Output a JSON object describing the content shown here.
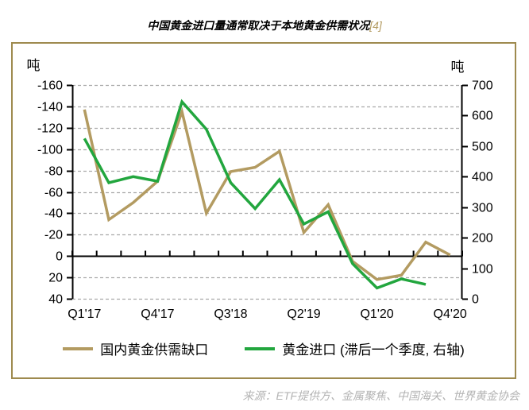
{
  "title": {
    "text": "中国黄金进口量通常取决于本地黄金供需状况",
    "ref": "[4]"
  },
  "source": {
    "text": "来源：ETF提供方、金属聚焦、中国海关、世界黄金协会"
  },
  "colors": {
    "box_border": "#9e8a4e",
    "grid": "#a9a9a9",
    "axis": "#000000",
    "title_ref": "#b39b61",
    "source_text": "#b3b3b3"
  },
  "chart_data": {
    "type": "line",
    "categories": [
      "Q1'17",
      "Q2'17",
      "Q3'17",
      "Q4'17",
      "Q1'18",
      "Q2'18",
      "Q3'18",
      "Q4'18",
      "Q1'19",
      "Q2'19",
      "Q3'19",
      "Q4'19",
      "Q1'20",
      "Q2'20",
      "Q3'20",
      "Q4'20"
    ],
    "x_ticks": [
      {
        "index": 0,
        "label": "Q1'17"
      },
      {
        "index": 3,
        "label": "Q4'17"
      },
      {
        "index": 6,
        "label": "Q3'18"
      },
      {
        "index": 9,
        "label": "Q2'19"
      },
      {
        "index": 12,
        "label": "Q1'20"
      },
      {
        "index": 15,
        "label": "Q4'20"
      }
    ],
    "left_axis": {
      "label": "吨",
      "top": -160,
      "bottom": 40,
      "ticks": [
        -160,
        -140,
        -120,
        -100,
        -80,
        -60,
        -40,
        -20,
        0,
        20,
        40
      ]
    },
    "right_axis": {
      "label": "吨",
      "top": 700,
      "bottom": 0,
      "ticks": [
        700,
        600,
        500,
        400,
        300,
        200,
        100,
        0
      ]
    },
    "grid": "dashed horizontal at every left-axis tick, solid zero line",
    "legend_position": "bottom",
    "series": [
      {
        "name": "国内黄金供需缺口",
        "axis": "left",
        "color": "#b39b61",
        "values": [
          -137,
          -34,
          -50,
          -70,
          -135,
          -40,
          -79,
          -83,
          -98,
          -22,
          -48,
          5,
          22,
          18,
          -13,
          -1
        ]
      },
      {
        "name": "黄金进口 (滞后一个季度, 右轴)",
        "axis": "right",
        "color": "#22a63e",
        "values": [
          525,
          380,
          400,
          385,
          645,
          555,
          380,
          295,
          390,
          245,
          285,
          115,
          35,
          65,
          47,
          null
        ]
      }
    ]
  }
}
